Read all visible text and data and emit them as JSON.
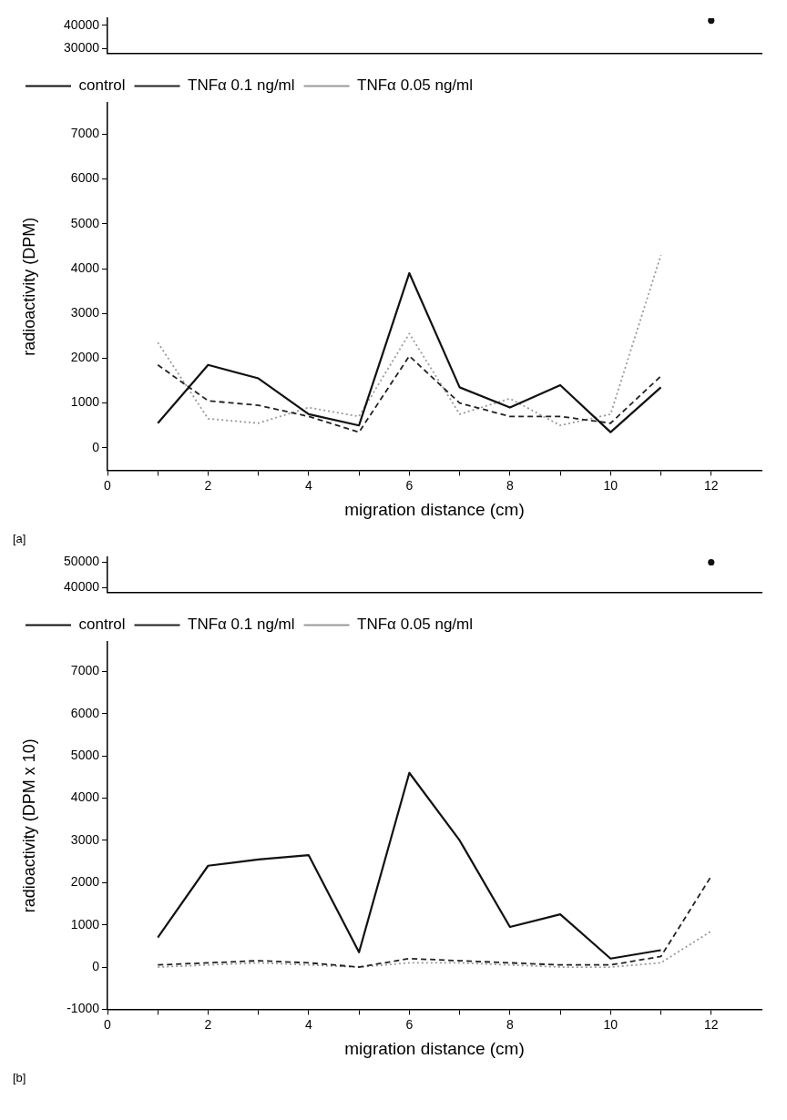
{
  "chart_data": [
    {
      "type": "line",
      "x": [
        12
      ],
      "xlim": [
        0,
        13
      ],
      "ylim": [
        28000,
        43000
      ],
      "yticks": [
        30000,
        40000
      ],
      "tick_labels": "y",
      "marker": "circle",
      "series": [
        {
          "color": "#111111",
          "line_style": "solid",
          "values": [
            42000
          ]
        }
      ]
    },
    {
      "type": "line",
      "xlabel": "migration distance (cm)",
      "ylabel": "radioactivity (DPM)",
      "annotations": [
        "[a]"
      ],
      "x": [
        1,
        2,
        3,
        4,
        5,
        6,
        7,
        8,
        9,
        10,
        11
      ],
      "xlim": [
        0,
        13
      ],
      "xticks": [
        0,
        {
          "value": 1,
          "label": null
        },
        2,
        {
          "value": 3,
          "label": null
        },
        4,
        {
          "value": 5,
          "label": null
        },
        6,
        {
          "value": 7,
          "label": null
        },
        8,
        {
          "value": 9,
          "label": null
        },
        10,
        {
          "value": 11,
          "label": null
        },
        12
      ],
      "ylim": [
        -500,
        7700
      ],
      "yticks": [
        0,
        1000,
        2000,
        3000,
        4000,
        5000,
        6000,
        7000
      ],
      "legend": "top left",
      "series": [
        {
          "name": "control",
          "color": "#111111",
          "line_style": "solid",
          "values": [
            550,
            1850,
            1550,
            750,
            500,
            3900,
            1350,
            900,
            1400,
            350,
            1350
          ]
        },
        {
          "name": "TNFα 0.1 ng/ml",
          "color": "#222222",
          "line_style": "dashed",
          "values": [
            1850,
            1050,
            950,
            700,
            350,
            2050,
            1000,
            700,
            700,
            550,
            1600
          ]
        },
        {
          "name": "TNFα 0.05 ng/ml",
          "color": "#999999",
          "line_style": "dotted",
          "values": [
            2350,
            650,
            550,
            900,
            700,
            2550,
            750,
            1100,
            500,
            750,
            4300
          ]
        }
      ]
    },
    {
      "type": "line",
      "x": [
        12
      ],
      "xlim": [
        0,
        13
      ],
      "ylim": [
        38000,
        52000
      ],
      "yticks": [
        40000,
        50000
      ],
      "tick_labels": "y",
      "marker": "circle",
      "series": [
        {
          "color": "#111111",
          "line_style": "solid",
          "values": [
            50000
          ]
        }
      ]
    },
    {
      "type": "line",
      "xlabel": "migration distance (cm)",
      "ylabel": "radioactivity (DPM x 10)",
      "annotations": [
        "[b]"
      ],
      "x": [
        1,
        2,
        3,
        4,
        5,
        6,
        7,
        8,
        9,
        10,
        11,
        12
      ],
      "xlim": [
        0,
        13
      ],
      "xticks": [
        0,
        {
          "value": 1,
          "label": null
        },
        2,
        {
          "value": 3,
          "label": null
        },
        4,
        {
          "value": 5,
          "label": null
        },
        6,
        {
          "value": 7,
          "label": null
        },
        8,
        {
          "value": 9,
          "label": null
        },
        10,
        {
          "value": 11,
          "label": null
        },
        12
      ],
      "ylim": [
        -1000,
        7700
      ],
      "yticks": [
        -1000,
        0,
        1000,
        2000,
        3000,
        4000,
        5000,
        6000,
        7000
      ],
      "legend": "top left",
      "series": [
        {
          "name": "control",
          "color": "#111111",
          "line_style": "solid",
          "values": [
            700,
            2400,
            2550,
            2650,
            350,
            4600,
            3000,
            950,
            1250,
            200,
            400,
            null
          ]
        },
        {
          "name": "TNFα 0.1 ng/ml",
          "color": "#222222",
          "line_style": "dashed",
          "values": [
            50,
            100,
            150,
            100,
            0,
            200,
            150,
            100,
            50,
            50,
            250,
            2150
          ]
        },
        {
          "name": "TNFα 0.05 ng/ml",
          "color": "#999999",
          "line_style": "dotted",
          "values": [
            0,
            50,
            100,
            50,
            0,
            100,
            100,
            50,
            0,
            0,
            100,
            850
          ]
        }
      ]
    }
  ]
}
